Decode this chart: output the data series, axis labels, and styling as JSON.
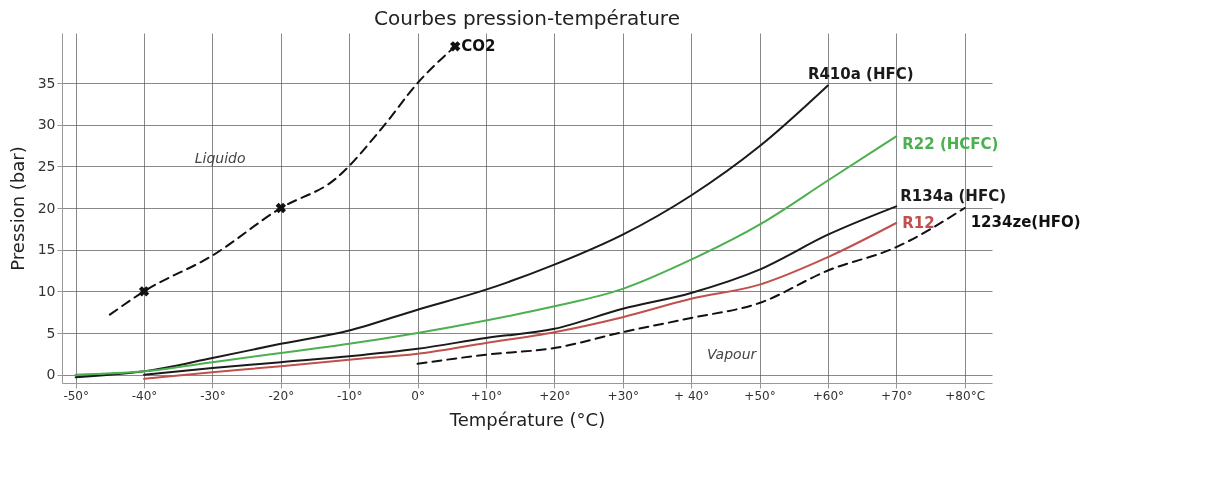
{
  "chart_data": {
    "type": "line",
    "title": "Courbes pression-température",
    "xlabel": "Température (°C)",
    "ylabel": "Pression (bar)",
    "xlim": [
      -52,
      84
    ],
    "ylim": [
      -1,
      41
    ],
    "xticks": [
      {
        "value": -50,
        "label": "-50°"
      },
      {
        "value": -40,
        "label": "-40°"
      },
      {
        "value": -30,
        "label": "-30°"
      },
      {
        "value": -20,
        "label": "-20°"
      },
      {
        "value": -10,
        "label": "-10°"
      },
      {
        "value": 0,
        "label": "0°"
      },
      {
        "value": 10,
        "label": "+10°"
      },
      {
        "value": 20,
        "label": "+20°"
      },
      {
        "value": 30,
        "label": "+30°"
      },
      {
        "value": 40,
        "label": "+ 40°"
      },
      {
        "value": 50,
        "label": "+50°"
      },
      {
        "value": 60,
        "label": "+60°"
      },
      {
        "value": 70,
        "label": "+70°"
      },
      {
        "value": 80,
        "label": "+80°C"
      }
    ],
    "yticks": [
      0,
      5,
      10,
      15,
      20,
      25,
      30,
      35
    ],
    "grid": true,
    "series": [
      {
        "name": "CO2",
        "color": "#111111",
        "line_style": "dashed",
        "x": [
          -45,
          -40,
          -30,
          -20,
          -12,
          -5,
          0,
          5.5
        ],
        "values": [
          7.2,
          10,
          14.3,
          20,
          23.5,
          29.8,
          35,
          39.4
        ]
      },
      {
        "color": "#111111",
        "type": "scatter",
        "marker": "cross",
        "x": [
          -40,
          -20,
          5.5
        ],
        "values": [
          10,
          20,
          39.4
        ]
      },
      {
        "name": "R410a (HFC)",
        "color": "#1a1a1a",
        "line_style": "solid",
        "x": [
          -50,
          -40,
          -30,
          -20,
          -10,
          0,
          10,
          20,
          30,
          40,
          50,
          60
        ],
        "values": [
          -0.3,
          0.4,
          2,
          3.7,
          5.3,
          7.8,
          10.2,
          13.2,
          16.8,
          21.5,
          27.4,
          34.7
        ]
      },
      {
        "name": "R22 (HCFC)",
        "color": "#4caf50",
        "line_style": "solid",
        "x": [
          -50,
          -40,
          -30,
          -20,
          -10,
          0,
          10,
          20,
          30,
          40,
          50,
          60,
          70
        ],
        "values": [
          0,
          0.4,
          1.5,
          2.6,
          3.7,
          5,
          6.5,
          8.2,
          10.3,
          13.8,
          18,
          23.3,
          28.6
        ]
      },
      {
        "name": "R134a (HFC)",
        "color": "#1a1a1a",
        "line_style": "solid",
        "x": [
          -40,
          -30,
          -20,
          -10,
          0,
          10,
          20,
          30,
          40,
          50,
          60,
          70
        ],
        "values": [
          0,
          0.8,
          1.5,
          2.2,
          3.1,
          4.4,
          5.5,
          7.9,
          9.8,
          12.6,
          16.8,
          20.2
        ]
      },
      {
        "name": "R12",
        "color": "#c0504d",
        "line_style": "solid",
        "x": [
          -40,
          -30,
          -20,
          -10,
          0,
          10,
          20,
          30,
          40,
          50,
          60,
          70
        ],
        "values": [
          -0.5,
          0.3,
          1,
          1.8,
          2.5,
          3.8,
          5.1,
          6.9,
          9.1,
          10.8,
          14.1,
          18.2
        ]
      },
      {
        "name": "1234ze(HFO)",
        "color": "#111111",
        "line_style": "dashed",
        "x": [
          0,
          10,
          20,
          30,
          40,
          50,
          60,
          70,
          80
        ],
        "values": [
          1.3,
          2.4,
          3.2,
          5.1,
          6.8,
          8.6,
          12.5,
          15.3,
          20
        ]
      }
    ],
    "annotations": [
      "Liquido",
      "Vapour"
    ]
  }
}
